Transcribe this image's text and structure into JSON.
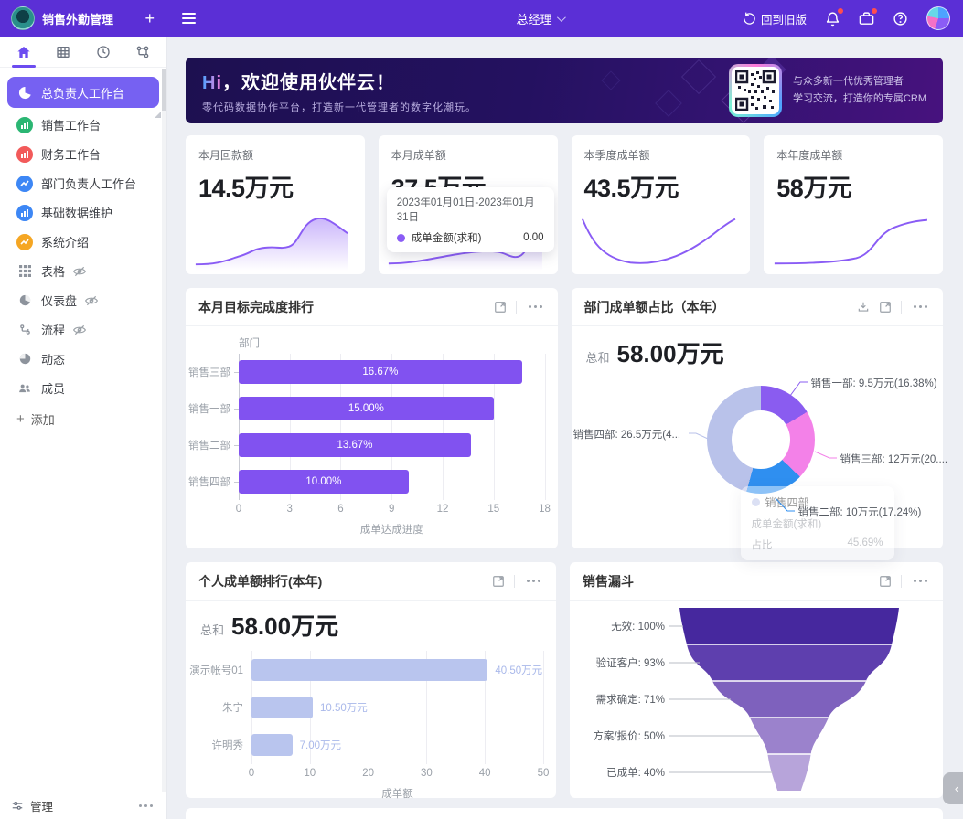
{
  "navbar": {
    "app_title": "销售外勤管理",
    "add_button": "+",
    "role_selector": "总经理",
    "back_to_old_label": "回到旧版",
    "bar_color": "#5b2fd6"
  },
  "sidebar": {
    "items": [
      {
        "label": "总负责人工作台",
        "active": true,
        "icon": "pie-chart",
        "color": "#7661f2"
      },
      {
        "label": "销售工作台",
        "active": false,
        "icon": "bar-chart",
        "color": "#2bb673"
      },
      {
        "label": "财务工作台",
        "active": false,
        "icon": "bar-chart",
        "color": "#f25a5a"
      },
      {
        "label": "部门负责人工作台",
        "active": false,
        "icon": "line-chart",
        "color": "#3d87f5"
      },
      {
        "label": "基础数据维护",
        "active": false,
        "icon": "bar-chart",
        "color": "#3d87f5"
      },
      {
        "label": "系统介绍",
        "active": false,
        "icon": "line-chart",
        "color": "#f5a623"
      },
      {
        "label": "表格",
        "active": false,
        "icon": "grid",
        "hidden_eye": true
      },
      {
        "label": "仪表盘",
        "active": false,
        "icon": "gauge",
        "hidden_eye": true
      },
      {
        "label": "流程",
        "active": false,
        "icon": "flow",
        "hidden_eye": true
      },
      {
        "label": "动态",
        "active": false,
        "icon": "activity"
      },
      {
        "label": "成员",
        "active": false,
        "icon": "members"
      }
    ],
    "add_item_label": "添加",
    "manage_label": "管理"
  },
  "banner": {
    "greeting_highlight": "Hi",
    "greeting_rest": "，欢迎使用伙伴云！",
    "subtitle": "零代码数据协作平台，打造新一代管理者的数字化潮玩。",
    "qr_caption_line1": "与众多新一代优秀管理者",
    "qr_caption_line2": "学习交流，打造你的专属CRM"
  },
  "kpis": [
    {
      "label": "本月回款额",
      "value": "14.5万元"
    },
    {
      "label": "本月成单额",
      "value": "37.5万元",
      "tooltip": {
        "date_range": "2023年01月01日-2023年01月31日",
        "series": "成单金额(求和)",
        "value": "0.00"
      }
    },
    {
      "label": "本季度成单额",
      "value": "43.5万元"
    },
    {
      "label": "本年度成单额",
      "value": "58万元"
    }
  ],
  "charts": {
    "target_ranking": {
      "type": "bar",
      "title": "本月目标完成度排行",
      "y_axis_name": "部门",
      "x_axis_name": "成单达成进度",
      "categories": [
        "销售三部",
        "销售一部",
        "销售二部",
        "销售四部"
      ],
      "values": [
        16.67,
        15.0,
        13.67,
        10.0
      ],
      "labels": [
        "16.67%",
        "15.00%",
        "13.67%",
        "10.00%"
      ],
      "x_ticks": [
        "0",
        "3",
        "6",
        "9",
        "12",
        "15",
        "18"
      ],
      "x_max": 18,
      "bar_color": "#8152f0"
    },
    "dept_share": {
      "type": "donut",
      "title": "部门成单额占比（本年）",
      "total_label": "总和",
      "total_value": "58.00万元",
      "slices": [
        {
          "name": "销售一部",
          "label": "销售一部: 9.5万元(16.38%)",
          "percent": 16.38,
          "color": "#8a5cf0"
        },
        {
          "name": "销售三部",
          "label": "销售三部: 12万元(20....",
          "percent": 20.69,
          "color": "#f381e8"
        },
        {
          "name": "销售二部",
          "label": "销售二部: 10万元(17.24%)",
          "percent": 17.24,
          "color": "#2f8ff0"
        },
        {
          "name": "销售四部",
          "label": "销售四部: 26.5万元(4...",
          "percent": 45.69,
          "color": "#b9c2ea"
        }
      ],
      "tooltip": {
        "title": "销售四部",
        "rows": [
          {
            "label": "成单金额(求和)",
            "value": ""
          },
          {
            "label": "占比",
            "value": "45.69%"
          }
        ]
      }
    },
    "personal_ranking": {
      "type": "bar",
      "title": "个人成单额排行(本年)",
      "total_label": "总和",
      "total_value": "58.00万元",
      "x_axis_name": "成单额",
      "categories": [
        "演示帐号01",
        "朱宁",
        "许明秀"
      ],
      "values": [
        40.5,
        10.5,
        7
      ],
      "labels": [
        "40.50万元",
        "10.50万元",
        "7.00万元"
      ],
      "x_ticks": [
        "0",
        "10",
        "20",
        "30",
        "40",
        "50"
      ],
      "x_max": 50,
      "bar_color": "#b9c5ee"
    },
    "funnel": {
      "type": "funnel",
      "title": "销售漏斗",
      "stages": [
        {
          "label": "无效: 100%",
          "percent": 100,
          "color": "#46289e"
        },
        {
          "label": "验证客户: 93%",
          "percent": 93,
          "color": "#5e3fae"
        },
        {
          "label": "需求确定: 71%",
          "percent": 71,
          "color": "#7e61bd"
        },
        {
          "label": "方案/报价: 50%",
          "percent": 50,
          "color": "#9b82cc"
        },
        {
          "label": "已成单: 40%",
          "percent": 40,
          "color": "#b7a4da"
        }
      ]
    }
  },
  "floating_collapse": "‹"
}
